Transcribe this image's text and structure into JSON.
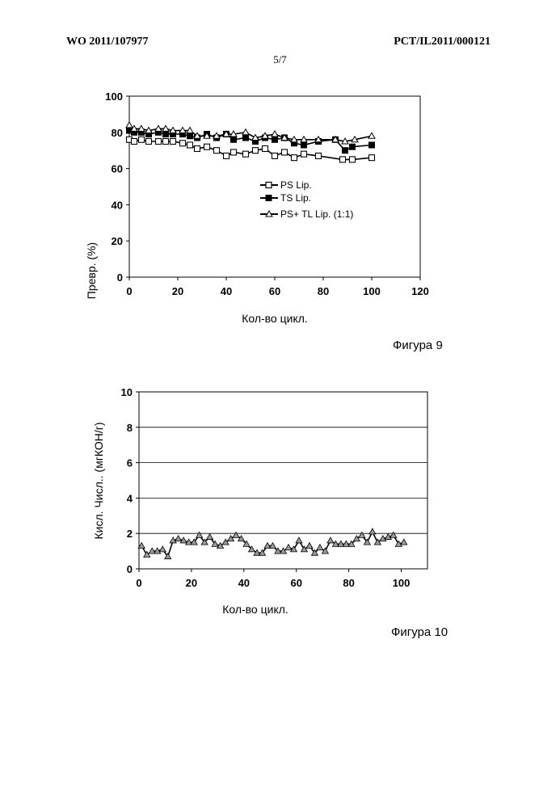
{
  "header": {
    "left": "WO 2011/107977",
    "right": "PCT/IL2011/000121",
    "page": "5/7"
  },
  "captions": {
    "fig9": "Фигура 9",
    "fig10": "Фигура 10"
  },
  "colors": {
    "axis": "#000000",
    "grid": "#000000",
    "series_fill": "#aaaaaa"
  },
  "chart_data": [
    {
      "type": "line",
      "id": "fig9",
      "title": "",
      "xlabel": "Кол-во цикл.",
      "ylabel": "Превр. (%)",
      "xlim": [
        0,
        120
      ],
      "ylim": [
        0,
        100
      ],
      "xticks": [
        0,
        20,
        40,
        60,
        80,
        100,
        120
      ],
      "yticks": [
        0,
        20,
        40,
        60,
        80,
        100
      ],
      "grid": false,
      "legend_position": "center-right",
      "series": [
        {
          "name": "PS Lip.",
          "marker": "square-open",
          "x": [
            0,
            2,
            5,
            8,
            12,
            15,
            18,
            22,
            25,
            28,
            32,
            36,
            40,
            43,
            48,
            52,
            56,
            60,
            64,
            68,
            72,
            78,
            88,
            92,
            100
          ],
          "y": [
            76,
            75,
            76,
            75,
            75,
            75,
            75,
            74,
            73,
            71,
            72,
            70,
            67,
            69,
            68,
            70,
            71,
            67,
            69,
            66,
            68,
            67,
            65,
            65,
            66
          ]
        },
        {
          "name": "TS Lip.",
          "marker": "square-filled",
          "x": [
            0,
            2,
            5,
            8,
            12,
            15,
            18,
            22,
            25,
            28,
            32,
            36,
            40,
            43,
            48,
            52,
            56,
            60,
            64,
            68,
            72,
            78,
            85,
            89,
            92,
            100
          ],
          "y": [
            81,
            80,
            80,
            79,
            80,
            79,
            79,
            79,
            78,
            77,
            79,
            77,
            79,
            76,
            77,
            75,
            77,
            76,
            77,
            74,
            73,
            75,
            76,
            70,
            72,
            73
          ]
        },
        {
          "name": "PS+ TL Lip. (1:1)",
          "marker": "triangle-open",
          "x": [
            0,
            2,
            5,
            8,
            12,
            15,
            18,
            22,
            25,
            28,
            32,
            36,
            40,
            43,
            48,
            52,
            56,
            60,
            64,
            68,
            72,
            78,
            85,
            89,
            93,
            100
          ],
          "y": [
            84,
            82,
            82,
            81,
            82,
            82,
            81,
            81,
            81,
            78,
            78,
            78,
            79,
            79,
            80,
            77,
            78,
            79,
            77,
            76,
            76,
            76,
            76,
            75,
            76,
            78
          ]
        }
      ]
    },
    {
      "type": "line",
      "id": "fig10",
      "title": "",
      "xlabel": "Кол-во цикл.",
      "ylabel": "Кисл. Числ.. (мгКОН/г)",
      "xlim": [
        0,
        110
      ],
      "ylim": [
        0,
        10
      ],
      "xticks": [
        0,
        20,
        40,
        60,
        80,
        100
      ],
      "yticks": [
        0,
        2,
        4,
        6,
        8,
        10
      ],
      "grid": true,
      "series": [
        {
          "name": "",
          "marker": "triangle-filled",
          "x": [
            1,
            3,
            5,
            7,
            9,
            11,
            13,
            15,
            17,
            19,
            21,
            23,
            25,
            27,
            29,
            31,
            33,
            35,
            37,
            39,
            41,
            43,
            45,
            47,
            49,
            51,
            53,
            55,
            57,
            59,
            61,
            63,
            65,
            67,
            69,
            71,
            73,
            75,
            77,
            79,
            81,
            83,
            85,
            87,
            89,
            91,
            93,
            95,
            97,
            99,
            101
          ],
          "y": [
            1.3,
            0.8,
            1.0,
            1.0,
            1.1,
            0.7,
            1.6,
            1.7,
            1.6,
            1.5,
            1.5,
            1.9,
            1.5,
            1.8,
            1.4,
            1.3,
            1.5,
            1.7,
            1.9,
            1.7,
            1.4,
            1.1,
            0.9,
            0.9,
            1.3,
            1.3,
            1.0,
            1.0,
            1.2,
            1.1,
            1.6,
            1.1,
            1.3,
            0.9,
            1.2,
            1.0,
            1.6,
            1.4,
            1.4,
            1.4,
            1.4,
            1.7,
            1.9,
            1.5,
            2.1,
            1.5,
            1.7,
            1.8,
            1.9,
            1.4,
            1.5
          ]
        }
      ]
    }
  ]
}
